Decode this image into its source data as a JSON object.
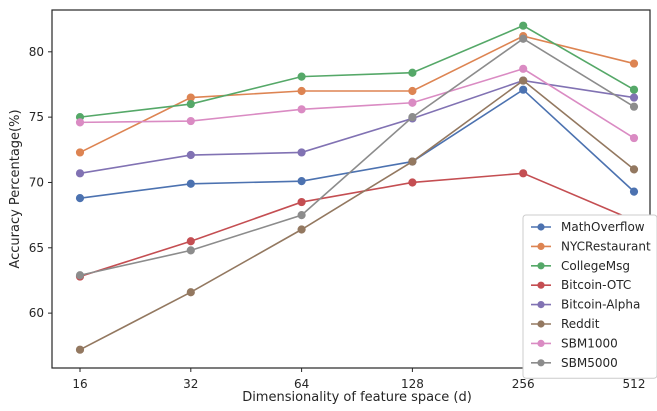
{
  "chart_data": {
    "type": "line",
    "title": "",
    "xlabel": "Dimensionality of feature space (d)",
    "ylabel": "Accuracy Percentage(%)",
    "categories": [
      "16",
      "32",
      "64",
      "128",
      "256",
      "512"
    ],
    "ylim": [
      55.8,
      83.2
    ],
    "yticks": [
      60,
      65,
      70,
      75,
      80
    ],
    "grid": false,
    "legend_position": "lower-right",
    "series": [
      {
        "name": "MathOverflow",
        "color": "#4c72b0",
        "values": [
          68.8,
          69.9,
          70.1,
          71.6,
          77.1,
          69.3
        ]
      },
      {
        "name": "NYCRestaurant",
        "color": "#dd8452",
        "values": [
          72.3,
          76.5,
          77.0,
          77.0,
          81.2,
          79.1
        ]
      },
      {
        "name": "CollegeMsg",
        "color": "#55a868",
        "values": [
          75.0,
          76.0,
          78.1,
          78.4,
          82.0,
          77.1
        ]
      },
      {
        "name": "Bitcoin-OTC",
        "color": "#c44e52",
        "values": [
          62.8,
          65.5,
          68.5,
          70.0,
          70.7,
          67.1
        ]
      },
      {
        "name": "Bitcoin-Alpha",
        "color": "#8172b3",
        "values": [
          70.7,
          72.1,
          72.3,
          74.9,
          77.8,
          76.5
        ]
      },
      {
        "name": "Reddit",
        "color": "#937860",
        "values": [
          57.2,
          61.6,
          66.4,
          71.6,
          77.8,
          71.0
        ]
      },
      {
        "name": "SBM1000",
        "color": "#da8bc3",
        "values": [
          74.6,
          74.7,
          75.6,
          76.1,
          78.7,
          73.4
        ]
      },
      {
        "name": "SBM5000",
        "color": "#8c8c8c",
        "values": [
          62.9,
          64.8,
          67.5,
          75.0,
          81.0,
          75.8
        ]
      }
    ]
  }
}
